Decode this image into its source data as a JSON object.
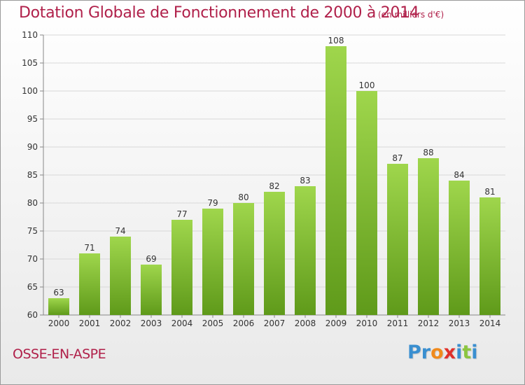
{
  "header": {
    "title": "Dotation Globale de Fonctionnement de 2000 à 2014",
    "unit": "(en milliers d'€)"
  },
  "footer": {
    "city": "OSSE-EN-ASPE",
    "logo_letters": [
      {
        "ch": "P",
        "color": "#3a8fd0"
      },
      {
        "ch": "r",
        "color": "#3a8fd0"
      },
      {
        "ch": "o",
        "color": "#f08a1c"
      },
      {
        "ch": "x",
        "color": "#e0302a"
      },
      {
        "ch": "i",
        "color": "#3a8fd0"
      },
      {
        "ch": "t",
        "color": "#8bc53f"
      },
      {
        "ch": "i",
        "color": "#3a8fd0"
      }
    ]
  },
  "colors": {
    "title": "#b0204a",
    "bar_top": "#9fd64c",
    "bar_bottom": "#5f9a1a",
    "grid": "#d8d8d8",
    "axis": "#888888"
  },
  "chart_data": {
    "type": "bar",
    "title": "Dotation Globale de Fonctionnement de 2000 à 2014",
    "subtitle": "(en milliers d'€)",
    "xlabel": "",
    "ylabel": "",
    "categories": [
      "2000",
      "2001",
      "2002",
      "2003",
      "2004",
      "2005",
      "2006",
      "2007",
      "2008",
      "2009",
      "2010",
      "2011",
      "2012",
      "2013",
      "2014"
    ],
    "values": [
      63,
      71,
      74,
      69,
      77,
      79,
      80,
      82,
      83,
      108,
      100,
      87,
      88,
      84,
      81
    ],
    "ylim": [
      60,
      110
    ],
    "yticks": [
      60,
      65,
      70,
      75,
      80,
      85,
      90,
      95,
      100,
      105,
      110
    ],
    "grid": true,
    "legend": "none",
    "data_labels": true
  }
}
